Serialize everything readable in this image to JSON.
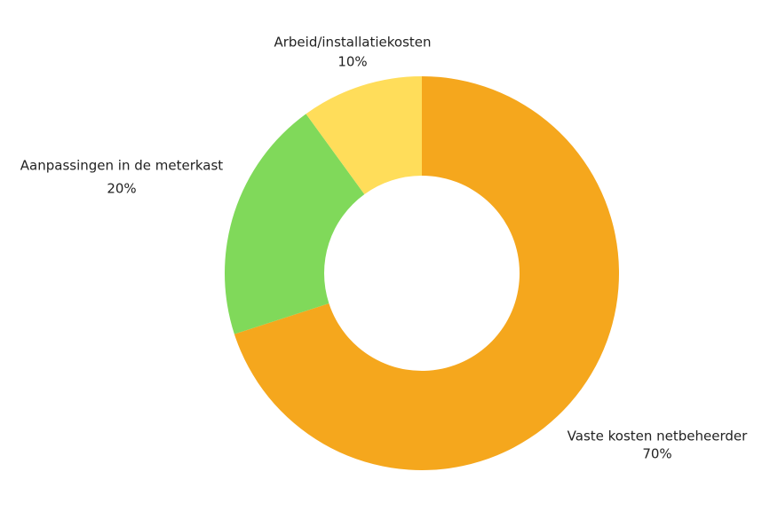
{
  "chart_data": {
    "type": "donut",
    "categories": [
      "Vaste kosten netbeheerder",
      "Aanpassingen in de meterkast",
      "Arbeid/installatiekosten"
    ],
    "values": [
      70,
      20,
      10
    ],
    "value_labels": [
      "70%",
      "20%",
      "10%"
    ],
    "colors": [
      "#f5a71d",
      "#80d95a",
      "#ffdd5a"
    ]
  }
}
